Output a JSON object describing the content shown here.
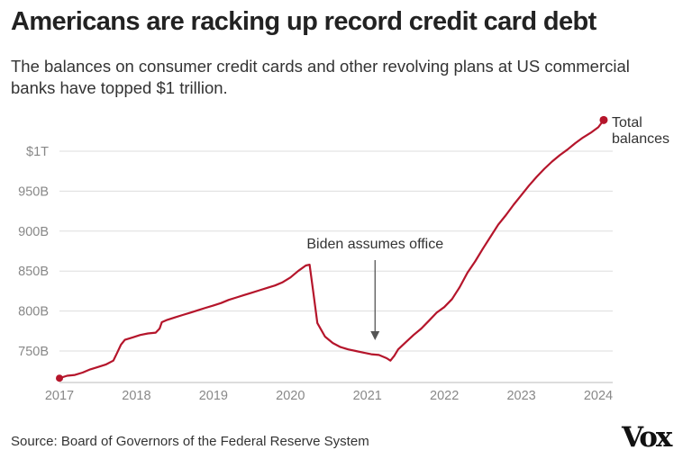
{
  "header": {
    "title": "Americans are racking up record credit card debt",
    "subtitle": "The balances on consumer credit cards and other revolving plans at US commercial banks have topped $1 trillion."
  },
  "footer": {
    "source": "Source: Board of Governors of the Federal Reserve System",
    "logo": "Vox"
  },
  "colors": {
    "line": "#b5152b",
    "grid": "#dddddd",
    "tick": "#888888",
    "arrow": "#555555"
  },
  "chart_data": {
    "type": "line",
    "title": "Americans are racking up record credit card debt",
    "xlabel": "",
    "ylabel": "",
    "xlim": [
      2017,
      2024.1
    ],
    "ylim": [
      705,
      1005
    ],
    "grid": true,
    "x_ticks": [
      {
        "value": 2017,
        "label": "2017"
      },
      {
        "value": 2018,
        "label": "2018"
      },
      {
        "value": 2019,
        "label": "2019"
      },
      {
        "value": 2020,
        "label": "2020"
      },
      {
        "value": 2021,
        "label": "2021"
      },
      {
        "value": 2022,
        "label": "2022"
      },
      {
        "value": 2023,
        "label": "2023"
      },
      {
        "value": 2024,
        "label": "2024"
      }
    ],
    "y_ticks": [
      {
        "value": 750,
        "label": "750B"
      },
      {
        "value": 800,
        "label": "800B"
      },
      {
        "value": 850,
        "label": "850B"
      },
      {
        "value": 900,
        "label": "900B"
      },
      {
        "value": 950,
        "label": "950B"
      },
      {
        "value": 1000,
        "label": "$1T"
      }
    ],
    "series": [
      {
        "name": "Total balances",
        "name_lines": [
          "Total",
          "balances"
        ],
        "x": [
          2017.0,
          2017.1,
          2017.2,
          2017.3,
          2017.4,
          2017.5,
          2017.6,
          2017.7,
          2017.75,
          2017.8,
          2017.85,
          2017.95,
          2018.05,
          2018.15,
          2018.25,
          2018.3,
          2018.33,
          2018.4,
          2018.5,
          2018.6,
          2018.7,
          2018.8,
          2018.9,
          2019.0,
          2019.1,
          2019.2,
          2019.3,
          2019.4,
          2019.5,
          2019.6,
          2019.7,
          2019.8,
          2019.9,
          2020.0,
          2020.1,
          2020.2,
          2020.25,
          2020.3,
          2020.35,
          2020.45,
          2020.55,
          2020.65,
          2020.75,
          2020.85,
          2020.95,
          2021.05,
          2021.15,
          2021.25,
          2021.3,
          2021.35,
          2021.4,
          2021.5,
          2021.6,
          2021.7,
          2021.8,
          2021.9,
          2022.0,
          2022.1,
          2022.2,
          2022.3,
          2022.4,
          2022.5,
          2022.6,
          2022.7,
          2022.8,
          2022.9,
          2023.0,
          2023.1,
          2023.2,
          2023.3,
          2023.4,
          2023.5,
          2023.6,
          2023.7,
          2023.8,
          2023.9,
          2024.0,
          2024.07
        ],
        "values": [
          716,
          719,
          720,
          723,
          727,
          730,
          733,
          738,
          748,
          758,
          764,
          767,
          770,
          772,
          773,
          778,
          786,
          789,
          792,
          795,
          798,
          801,
          804,
          807,
          810,
          814,
          817,
          820,
          823,
          826,
          829,
          832,
          836,
          842,
          850,
          857,
          858,
          822,
          785,
          768,
          760,
          755,
          752,
          750,
          748,
          746,
          745,
          741,
          738,
          744,
          752,
          761,
          770,
          778,
          788,
          798,
          805,
          815,
          830,
          848,
          862,
          878,
          893,
          908,
          920,
          933,
          945,
          957,
          968,
          978,
          987,
          995,
          1002,
          1010,
          1017,
          1023,
          1030,
          1039
        ]
      }
    ],
    "annotations": [
      {
        "text": "Biden assumes office",
        "x": 2021.1,
        "y": 746
      }
    ]
  }
}
